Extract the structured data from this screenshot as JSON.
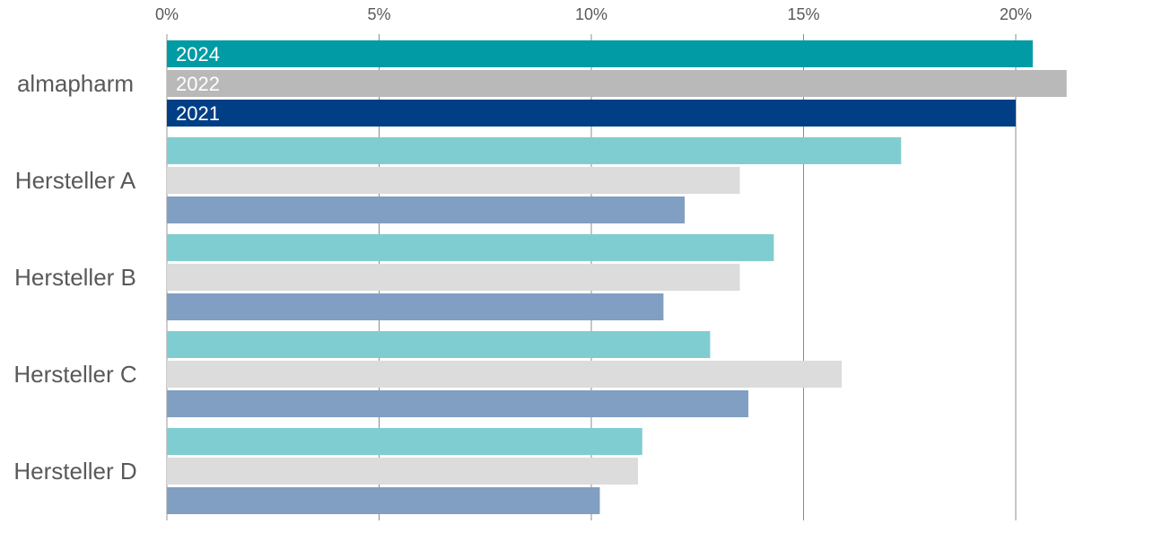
{
  "chart_data": {
    "type": "bar",
    "orientation": "horizontal",
    "categories": [
      "almapharm",
      "Hersteller A",
      "Hersteller B",
      "Hersteller C",
      "Hersteller D"
    ],
    "series": [
      {
        "name": "2024",
        "color": "#009BA4",
        "highlight_color": "#009BA4",
        "muted_color": "#80CDD1",
        "values": [
          20.4,
          17.3,
          14.3,
          12.8,
          11.2
        ]
      },
      {
        "name": "2022",
        "color": "#B9B9B9",
        "highlight_color": "#B9B9B9",
        "muted_color": "#DCDCDC",
        "values": [
          21.2,
          13.5,
          13.5,
          15.9,
          11.1
        ]
      },
      {
        "name": "2021",
        "color": "#003F85",
        "highlight_color": "#003F85",
        "muted_color": "#809FC2",
        "values": [
          20.0,
          12.2,
          11.7,
          13.7,
          10.2
        ]
      }
    ],
    "xlim": [
      0,
      20
    ],
    "xticks": [
      {
        "value": 0,
        "label": "0%"
      },
      {
        "value": 5,
        "label": "5%"
      },
      {
        "value": 10,
        "label": "10%"
      },
      {
        "value": 15,
        "label": "15%"
      },
      {
        "value": 20,
        "label": "20%"
      }
    ],
    "grid": true,
    "axis_position": "top",
    "series_labels_in_first_category": true,
    "title": "",
    "xlabel": "",
    "ylabel": ""
  }
}
